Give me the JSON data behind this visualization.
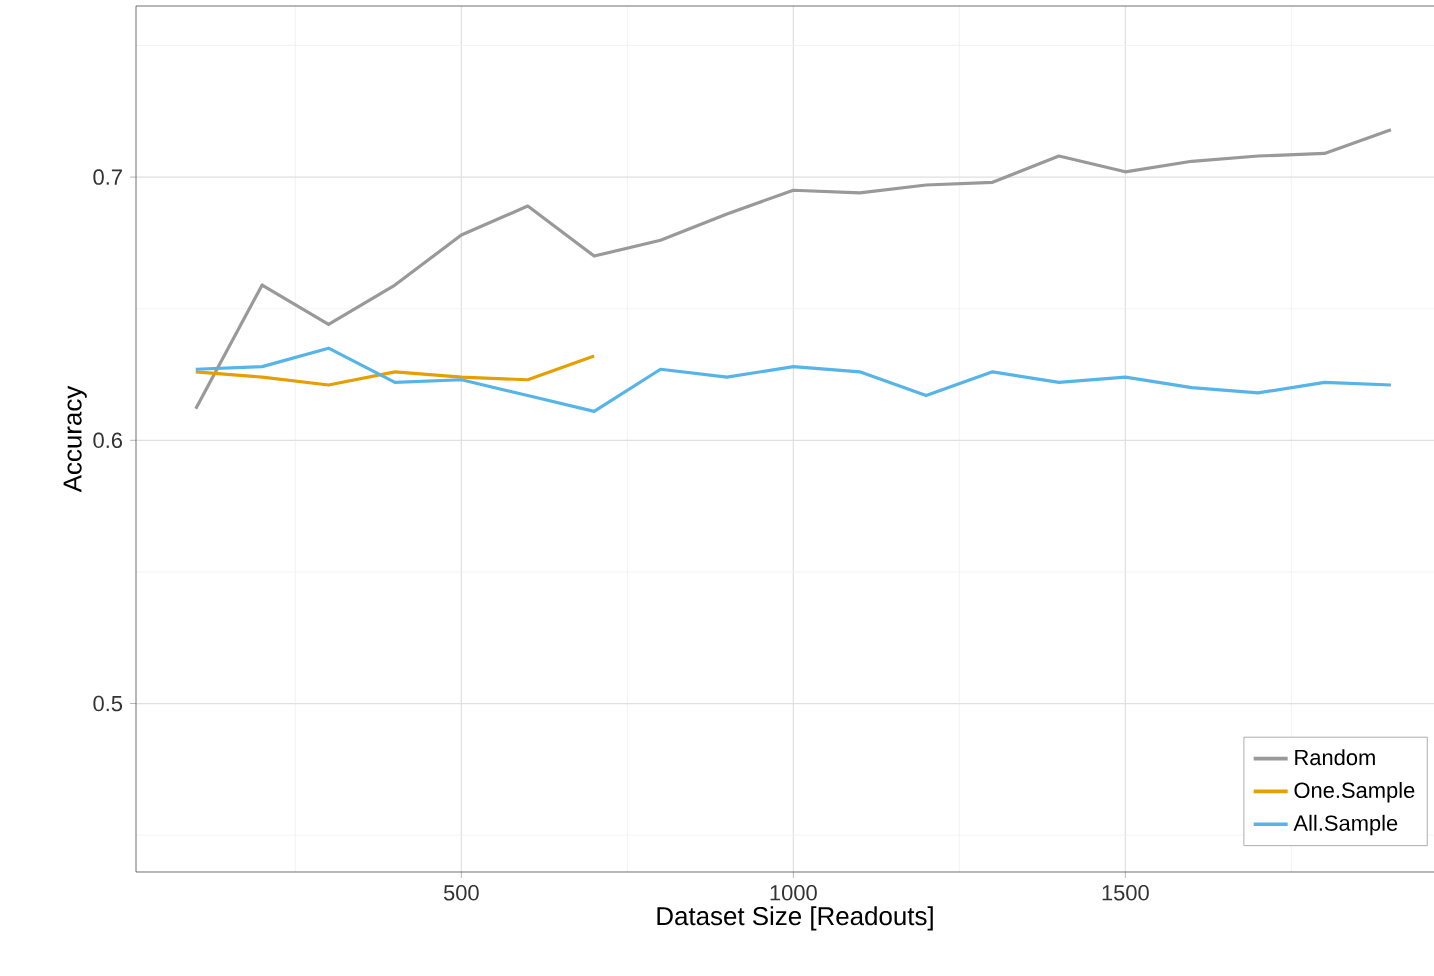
{
  "chart_data": {
    "type": "line",
    "xlabel": "Dataset Size [Readouts]",
    "ylabel": "Accuracy",
    "x": [
      100,
      200,
      300,
      400,
      500,
      600,
      700,
      800,
      900,
      1000,
      1100,
      1200,
      1300,
      1400,
      1500,
      1600,
      1700,
      1800,
      1900
    ],
    "series": [
      {
        "name": "Random",
        "color": "#999999",
        "values": [
          0.612,
          0.659,
          0.644,
          0.659,
          0.678,
          0.689,
          0.67,
          0.676,
          0.686,
          0.695,
          0.694,
          0.697,
          0.698,
          0.708,
          0.702,
          0.706,
          0.708,
          0.709,
          0.718
        ]
      },
      {
        "name": "One.Sample",
        "color": "#e69f00",
        "values": [
          0.626,
          0.624,
          0.621,
          0.626,
          0.624,
          0.623,
          0.632,
          null,
          null,
          null,
          null,
          null,
          null,
          null,
          null,
          null,
          null,
          null,
          null
        ]
      },
      {
        "name": "All.Sample",
        "color": "#56b4e9",
        "values": [
          0.627,
          0.628,
          0.635,
          0.622,
          0.623,
          0.617,
          0.611,
          0.627,
          0.624,
          0.628,
          0.626,
          0.617,
          0.626,
          0.622,
          0.624,
          0.62,
          0.618,
          0.622,
          0.621
        ]
      }
    ],
    "xlim": [
      10,
      1995
    ],
    "ylim": [
      0.436,
      0.765
    ],
    "xticks": [
      500,
      1000,
      1500
    ],
    "yticks": [
      0.5,
      0.6,
      0.7
    ],
    "grid": true,
    "legend": "bottom right",
    "marker": "none",
    "line_style": "solid"
  }
}
